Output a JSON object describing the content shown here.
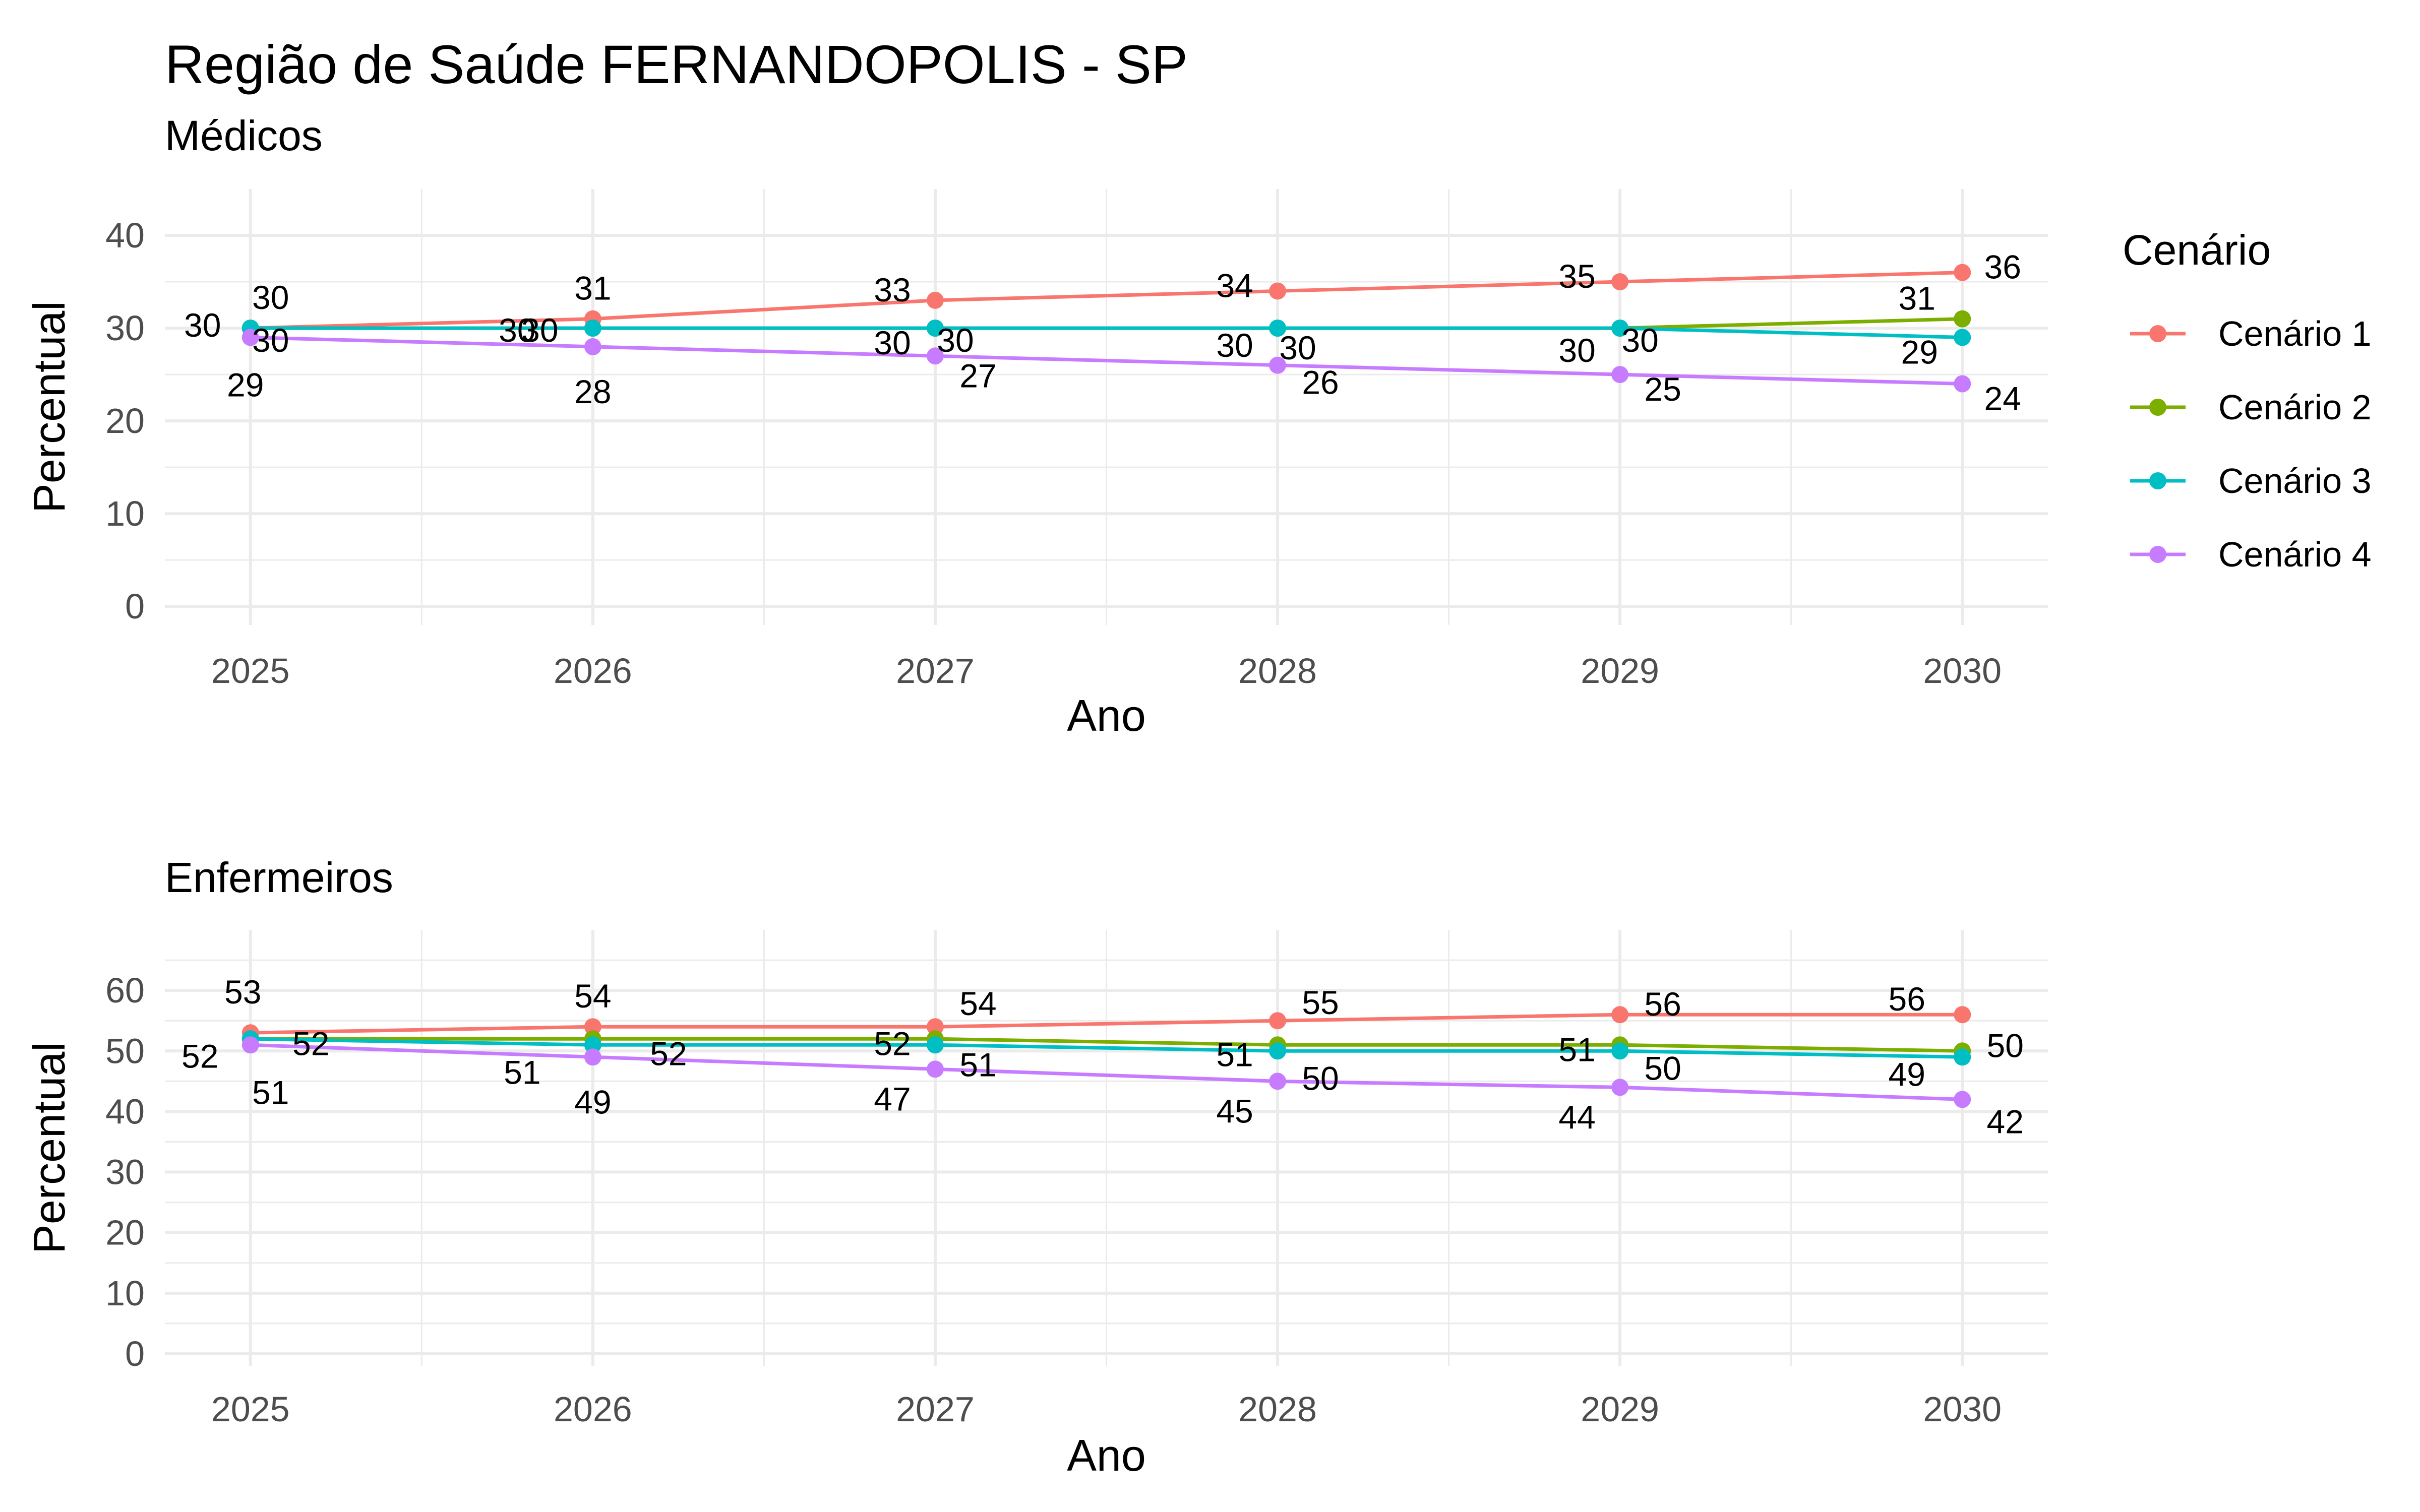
{
  "title": "Região de Saúde FERNANDOPOLIS - SP",
  "legend": {
    "title": "Cenário",
    "entries": [
      "Cenário 1",
      "Cenário 2",
      "Cenário 3",
      "Cenário 4"
    ],
    "placement": "right"
  },
  "colors": {
    "Cenário 1": "#F8766D",
    "Cenário 2": "#7CAE00",
    "Cenário 3": "#00BFC4",
    "Cenário 4": "#C77CFF",
    "grid": "#ebebeb"
  },
  "chart_data": [
    {
      "type": "line",
      "subtitle": "Médicos",
      "xlabel": "Ano",
      "ylabel": "Percentual",
      "x": [
        2025,
        2026,
        2027,
        2028,
        2029,
        2030
      ],
      "xlim": [
        2024.75,
        2030.25
      ],
      "ylim": [
        -2,
        45
      ],
      "yticks": [
        0,
        10,
        20,
        30,
        40
      ],
      "grid": true,
      "series": [
        {
          "name": "Cenário 1",
          "values": [
            30,
            31,
            33,
            34,
            35,
            36
          ]
        },
        {
          "name": "Cenário 2",
          "values": [
            30,
            30,
            30,
            30,
            30,
            31
          ]
        },
        {
          "name": "Cenário 3",
          "values": [
            30,
            30,
            30,
            30,
            30,
            29
          ]
        },
        {
          "name": "Cenário 4",
          "values": [
            29,
            28,
            27,
            26,
            25,
            24
          ]
        }
      ]
    },
    {
      "type": "line",
      "subtitle": "Enfermeiros",
      "xlabel": "Ano",
      "ylabel": "Percentual",
      "x": [
        2025,
        2026,
        2027,
        2028,
        2029,
        2030
      ],
      "xlim": [
        2024.75,
        2030.25
      ],
      "ylim": [
        -2,
        70
      ],
      "yticks": [
        0,
        10,
        20,
        30,
        40,
        50,
        60
      ],
      "grid": true,
      "series": [
        {
          "name": "Cenário 1",
          "values": [
            53,
            54,
            54,
            55,
            56,
            56
          ]
        },
        {
          "name": "Cenário 2",
          "values": [
            52,
            52,
            52,
            51,
            51,
            50
          ]
        },
        {
          "name": "Cenário 3",
          "values": [
            52,
            51,
            51,
            50,
            50,
            49
          ]
        },
        {
          "name": "Cenário 4",
          "values": [
            51,
            49,
            47,
            45,
            44,
            42
          ]
        }
      ]
    }
  ]
}
